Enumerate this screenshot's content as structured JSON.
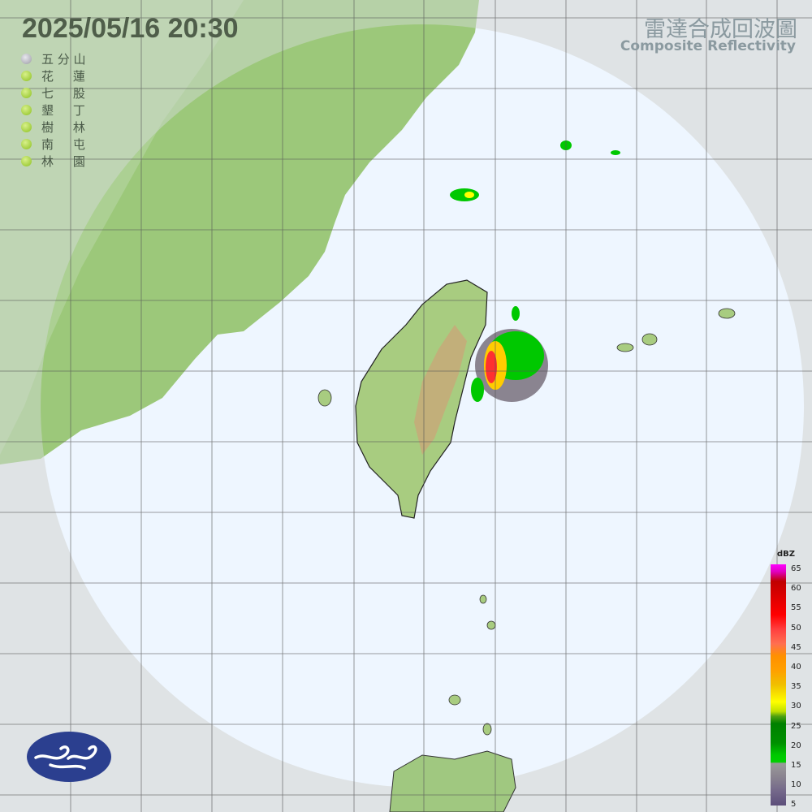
{
  "header": {
    "datetime": "2025/05/16  20:30",
    "title_zh": "雷達合成回波圖",
    "title_en": "Composite Reflectivity"
  },
  "stations": [
    {
      "name": "五 分 山",
      "status": "offline"
    },
    {
      "name": "花     蓮",
      "status": "online"
    },
    {
      "name": "七     股",
      "status": "online"
    },
    {
      "name": "墾     丁",
      "status": "online"
    },
    {
      "name": "樹     林",
      "status": "online"
    },
    {
      "name": "南     屯",
      "status": "online"
    },
    {
      "name": "林     園",
      "status": "online"
    }
  ],
  "colorbar": {
    "unit": "dBZ",
    "labels": [
      "65",
      "60",
      "55",
      "50",
      "45",
      "40",
      "35",
      "30",
      "25",
      "20",
      "15",
      "10",
      "5"
    ]
  },
  "colors": {
    "ocean": "#eef6ff",
    "outside_range": "#e6eaec",
    "land": "#9cc87a",
    "station_online": "#9ccc30",
    "station_offline": "#a0a0a8"
  },
  "logo": {
    "icon": "cwa-logo-icon"
  }
}
